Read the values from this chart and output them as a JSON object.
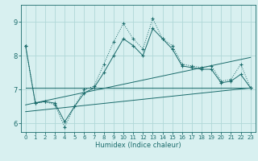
{
  "title": "",
  "xlabel": "Humidex (Indice chaleur)",
  "bg_color": "#d8f0f0",
  "grid_color": "#b0d8d8",
  "line_color": "#1a6b6b",
  "xlim": [
    -0.5,
    23.5
  ],
  "ylim": [
    5.75,
    9.5
  ],
  "xticks": [
    0,
    1,
    2,
    3,
    4,
    5,
    6,
    7,
    8,
    9,
    10,
    11,
    12,
    13,
    14,
    15,
    16,
    17,
    18,
    19,
    20,
    21,
    22,
    23
  ],
  "yticks": [
    6,
    7,
    8,
    9
  ],
  "series1_x": [
    0,
    1,
    2,
    3,
    4,
    5,
    6,
    7,
    8,
    9,
    10,
    11,
    12,
    13,
    14,
    15,
    16,
    17,
    18,
    19,
    20,
    21,
    22,
    23
  ],
  "series1_y": [
    8.3,
    6.6,
    6.65,
    6.55,
    5.9,
    6.5,
    7.0,
    7.1,
    7.75,
    8.4,
    8.95,
    8.5,
    8.2,
    9.1,
    8.5,
    8.3,
    7.75,
    7.7,
    7.65,
    7.7,
    7.25,
    7.3,
    7.75,
    7.05
  ],
  "series2_x": [
    0,
    1,
    2,
    3,
    4,
    5,
    6,
    7,
    8,
    9,
    10,
    11,
    12,
    13,
    14,
    15,
    16,
    17,
    18,
    19,
    20,
    21,
    22,
    23
  ],
  "series2_y": [
    8.3,
    6.6,
    6.65,
    6.6,
    6.05,
    6.5,
    6.9,
    7.05,
    7.5,
    8.0,
    8.5,
    8.3,
    8.0,
    8.8,
    8.5,
    8.2,
    7.7,
    7.65,
    7.6,
    7.6,
    7.2,
    7.25,
    7.45,
    7.05
  ],
  "trend1_x": [
    0,
    23
  ],
  "trend1_y": [
    6.55,
    7.95
  ],
  "trend2_x": [
    0,
    23
  ],
  "trend2_y": [
    6.35,
    7.05
  ],
  "trend3_x": [
    0,
    23
  ],
  "trend3_y": [
    7.05,
    7.05
  ],
  "xlabel_fontsize": 6,
  "tick_fontsize_x": 5,
  "tick_fontsize_y": 6
}
